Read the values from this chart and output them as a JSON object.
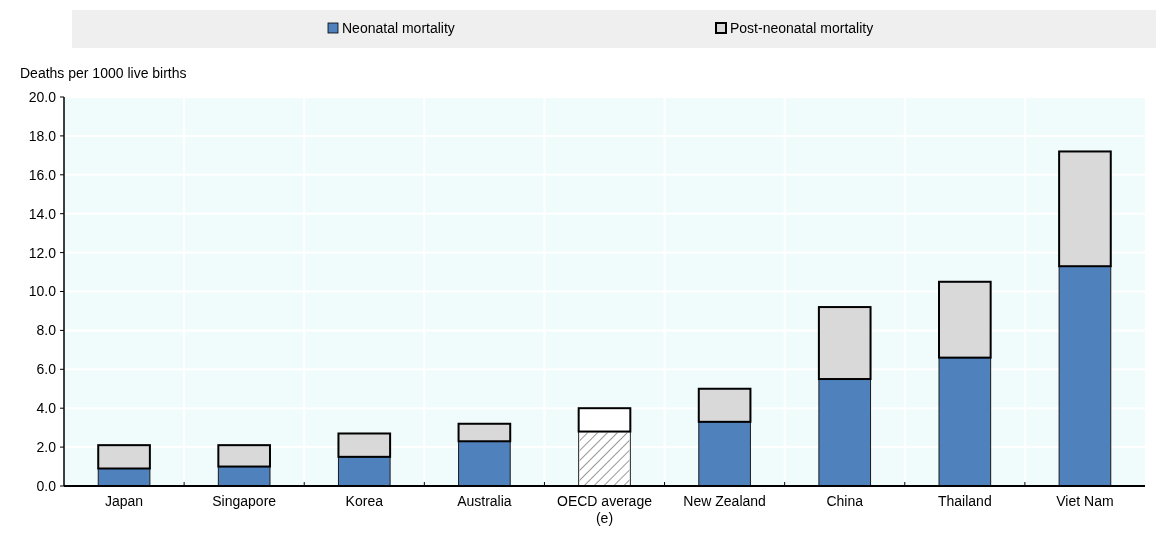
{
  "chart_data": {
    "type": "bar",
    "stacked": true,
    "ylabel": "Deaths per 1000 live births",
    "categories": [
      "Japan",
      "Singapore",
      "Korea",
      "Australia",
      "OECD average (e)",
      "New Zealand",
      "China",
      "Thailand",
      "Viet Nam"
    ],
    "series": [
      {
        "name": "Neonatal mortality",
        "color": "#4f81bd",
        "colors": [
          "#4f81bd",
          "#4f81bd",
          "#4f81bd",
          "#4f81bd",
          "#ffffff",
          "#4f81bd",
          "#4f81bd",
          "#4f81bd",
          "#4f81bd"
        ],
        "values": [
          0.9,
          1.0,
          1.5,
          2.3,
          2.8,
          3.3,
          5.5,
          6.6,
          11.3
        ]
      },
      {
        "name": "Post-neonatal mortality",
        "color": "#d9d9d9",
        "colors": [
          "#d9d9d9",
          "#d9d9d9",
          "#d9d9d9",
          "#d9d9d9",
          "#ffffff",
          "#d9d9d9",
          "#d9d9d9",
          "#d9d9d9",
          "#d9d9d9"
        ],
        "values": [
          1.2,
          1.1,
          1.2,
          0.9,
          1.2,
          1.7,
          3.7,
          3.9,
          5.9
        ]
      }
    ],
    "ylim": [
      0,
      20
    ],
    "yticks": [
      {
        "value": 0,
        "label": "0.0"
      },
      {
        "value": 2,
        "label": "2.0"
      },
      {
        "value": 4,
        "label": "4.0"
      },
      {
        "value": 6,
        "label": "6.0"
      },
      {
        "value": 8,
        "label": "8.0"
      },
      {
        "value": 10,
        "label": "10.0"
      },
      {
        "value": 12,
        "label": "12.0"
      },
      {
        "value": 14,
        "label": "14.0"
      },
      {
        "value": 16,
        "label": "16.0"
      },
      {
        "value": 18,
        "label": "18.0"
      },
      {
        "value": 20,
        "label": "20.0"
      }
    ],
    "grid": true,
    "legend": "top"
  }
}
